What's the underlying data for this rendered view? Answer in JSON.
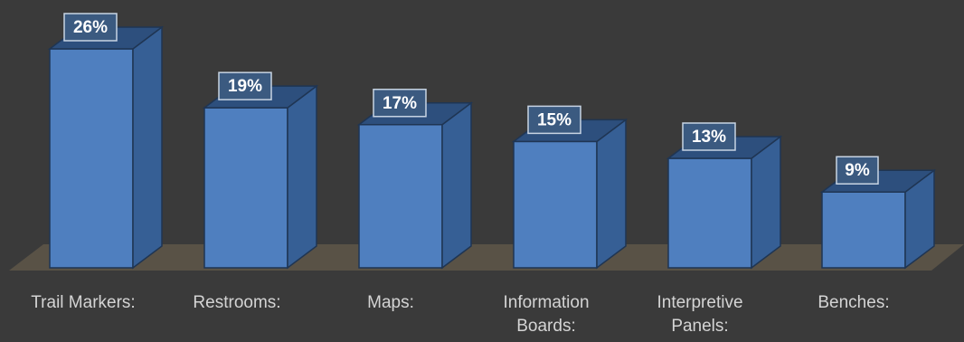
{
  "colors": {
    "background": "#3a3a3a",
    "floor": "#595246",
    "bar_front": "#4f7fbf",
    "bar_side": "#365f95",
    "bar_top": "#2d4f7d",
    "bar_edge": "#1f3553",
    "label_box_fill": "#3b5a80",
    "label_box_stroke": "#c8d4e3",
    "label_text": "#ffffff",
    "category_text": "#d4d4d4"
  },
  "chart_data": {
    "type": "bar",
    "style": "3d-column",
    "categories": [
      [
        "Trail Markers:"
      ],
      [
        "Restrooms:"
      ],
      [
        "Maps:"
      ],
      [
        "Information",
        "Boards:"
      ],
      [
        "Interpretive",
        "Panels:"
      ],
      [
        "Benches:"
      ]
    ],
    "values": [
      26,
      19,
      17,
      15,
      13,
      9
    ],
    "data_labels": [
      "26%",
      "19%",
      "17%",
      "15%",
      "13%",
      "9%"
    ],
    "value_unit": "%",
    "title": "",
    "xlabel": "",
    "ylabel": "",
    "grid": false,
    "legend": "none",
    "ylim": [
      0,
      26
    ]
  }
}
